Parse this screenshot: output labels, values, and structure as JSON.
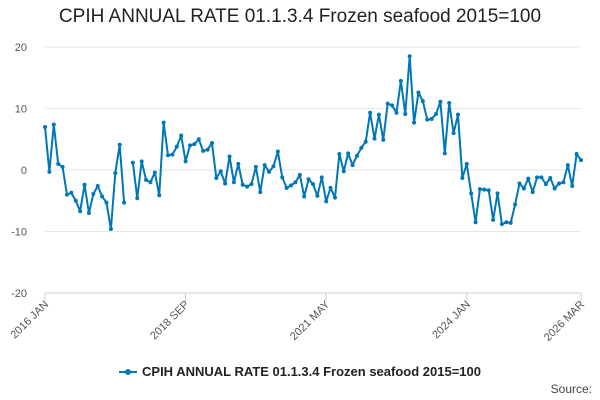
{
  "title": "CPIH ANNUAL RATE 01.1.3.4 Frozen seafood 2015=100",
  "source_label": "Source:",
  "colors": {
    "series": "#0077b6",
    "grid": "#e6e6e6",
    "axis": "#cccccc"
  },
  "chart_data": {
    "type": "line",
    "title": "CPIH ANNUAL RATE 01.1.3.4 Frozen seafood 2015=100",
    "xlabel": "",
    "ylabel": "",
    "ylim": [
      -20,
      20
    ],
    "yticks": [
      20,
      10,
      0,
      -10,
      -20
    ],
    "grid": true,
    "legend_position": "bottom",
    "x_start": "2016 JAN",
    "x_end": "2026 MAR",
    "x_ticks": [
      {
        "label": "2016 JAN",
        "index": 0
      },
      {
        "label": "2018 SEP",
        "index": 32
      },
      {
        "label": "2021 MAY",
        "index": 64
      },
      {
        "label": "2024 JAN",
        "index": 96
      },
      {
        "label": "2026 MAR",
        "index": 122
      }
    ],
    "series": [
      {
        "name": "CPIH ANNUAL RATE 01.1.3.4 Frozen seafood 2015=100",
        "values": [
          7.0,
          -0.3,
          7.4,
          1.0,
          0.5,
          -4.0,
          -3.7,
          -5.0,
          -6.7,
          -2.4,
          -7.0,
          -3.9,
          -2.6,
          -4.3,
          -5.3,
          -9.6,
          -0.5,
          4.1,
          -5.3,
          null,
          1.2,
          -4.6,
          1.4,
          -1.6,
          -2.0,
          -0.4,
          -4.1,
          7.7,
          2.4,
          2.5,
          3.8,
          5.6,
          1.4,
          4.0,
          4.2,
          5.0,
          3.1,
          3.3,
          4.4,
          -1.3,
          -0.2,
          -2.2,
          2.2,
          -2.0,
          1.0,
          -2.4,
          -2.7,
          -2.3,
          0.5,
          -3.6,
          0.8,
          -0.3,
          0.6,
          3.0,
          -1.2,
          -2.9,
          -2.5,
          -2.0,
          -0.8,
          -4.3,
          -1.5,
          -2.3,
          -4.2,
          -1.2,
          -5.1,
          -2.9,
          -4.5,
          2.6,
          -0.2,
          2.7,
          0.8,
          2.3,
          3.6,
          4.6,
          9.3,
          5.1,
          9.0,
          4.9,
          10.8,
          10.5,
          9.3,
          14.5,
          9.1,
          18.5,
          7.7,
          12.6,
          11.2,
          8.2,
          8.3,
          9.1,
          11.1,
          2.7,
          10.9,
          6.0,
          9.0,
          -1.3,
          1.0,
          -3.8,
          -8.5,
          -3.1,
          -3.2,
          -3.3,
          -8.1,
          -3.8,
          -8.8,
          -8.5,
          -8.6,
          -5.6,
          -2.2,
          -3.0,
          -1.4,
          -3.6,
          -1.2,
          -1.2,
          -2.3,
          -1.3,
          -3.0,
          -2.2,
          -2.0,
          0.8,
          -2.6,
          2.6,
          1.6
        ]
      }
    ]
  }
}
